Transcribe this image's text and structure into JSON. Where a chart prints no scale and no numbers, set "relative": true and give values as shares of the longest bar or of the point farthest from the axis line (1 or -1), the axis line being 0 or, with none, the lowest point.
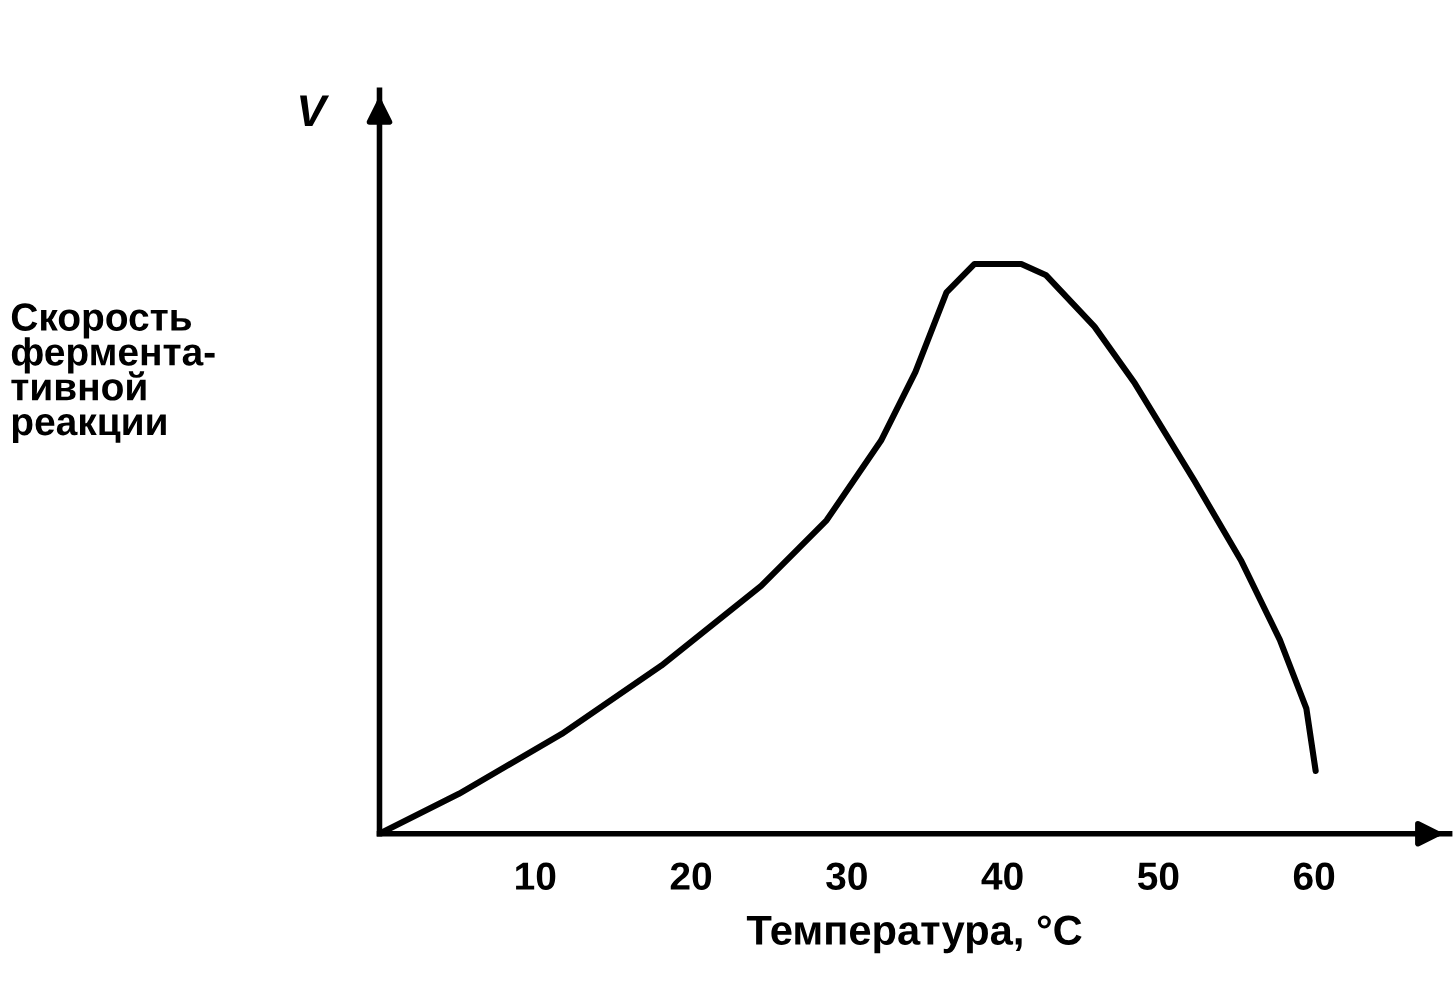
{
  "chart_data": {
    "type": "line",
    "relative": true,
    "ylabel": "Скорость\nфермента-\nтивной\nреакции",
    "xlabel": "Температура, °C",
    "annotations": [
      "V"
    ],
    "x": [
      0,
      5.1,
      11.7,
      18.1,
      24.5,
      28.7,
      32.2,
      34.4,
      36.4,
      38.2,
      41.2,
      42.8,
      45.9,
      48.5,
      52.3,
      55.3,
      57.8,
      59.5,
      60.1
    ],
    "series": [
      {
        "color": "#000000",
        "values": [
          0,
          0.07,
          0.175,
          0.295,
          0.435,
          0.55,
          0.69,
          0.81,
          0.95,
          1,
          1,
          0.98,
          0.89,
          0.79,
          0.62,
          0.48,
          0.34,
          0.22,
          0.11
        ]
      }
    ],
    "xlim": [
      0,
      68.7
    ],
    "xticks": [
      10,
      20,
      30,
      40,
      50,
      60
    ],
    "grid": false,
    "legend": false,
    "marker": "none",
    "line_style": "solid"
  }
}
